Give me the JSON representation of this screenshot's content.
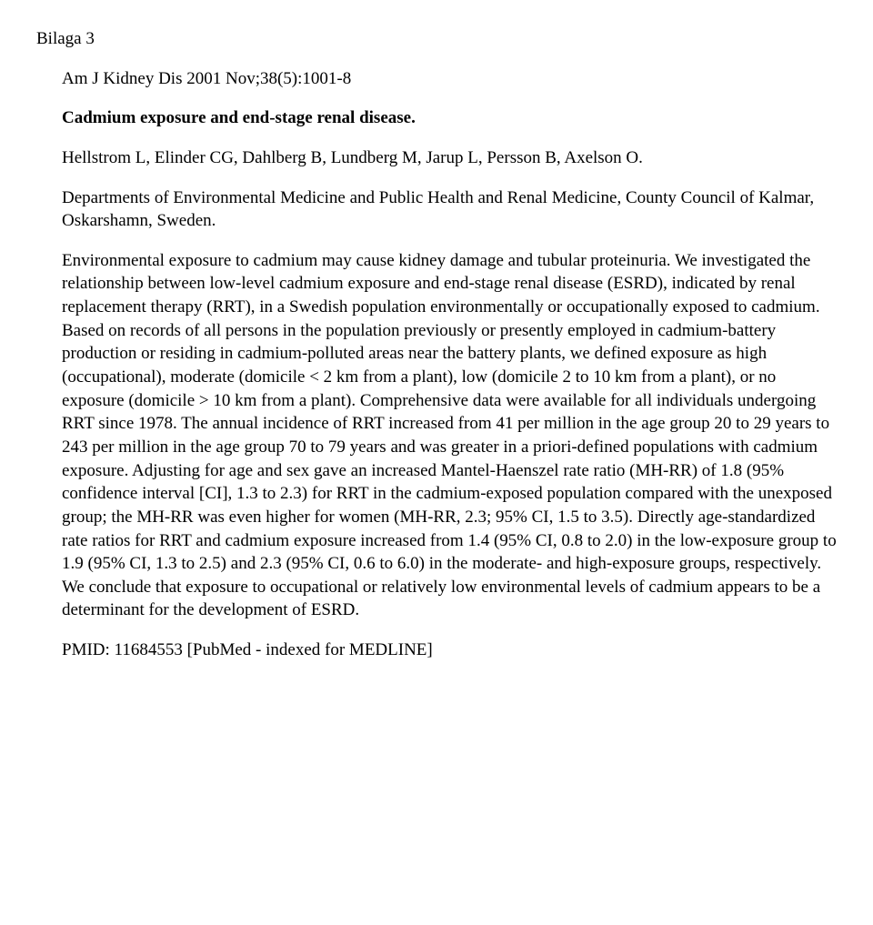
{
  "header_label": "Bilaga 3",
  "citation": "Am J Kidney Dis 2001 Nov;38(5):1001-8",
  "title": "Cadmium exposure and end-stage renal disease.",
  "authors": "Hellstrom L, Elinder CG, Dahlberg B, Lundberg M, Jarup L, Persson B, Axelson O.",
  "affiliation": "Departments of Environmental Medicine and Public Health and Renal Medicine, County Council of Kalmar, Oskarshamn, Sweden.",
  "abstract": "Environmental exposure to cadmium may cause kidney damage and tubular proteinuria. We investigated the relationship between low-level cadmium exposure and end-stage renal disease (ESRD), indicated by renal replacement therapy (RRT), in a Swedish population environmentally or occupationally exposed to cadmium. Based on records of all persons in the population previously or presently employed in cadmium-battery production or residing in cadmium-polluted areas near the battery plants, we defined exposure as high (occupational), moderate (domicile < 2 km from a plant), low (domicile 2 to 10 km from a plant), or no exposure (domicile > 10 km from a plant). Comprehensive data were available for all individuals undergoing RRT since 1978. The annual incidence of RRT increased from 41 per million in the age group 20 to 29 years to 243 per million in the age group 70 to 79 years and was greater in a priori-defined populations with cadmium exposure. Adjusting for age and sex gave an increased Mantel-Haenszel rate ratio (MH-RR) of 1.8 (95% confidence interval [CI], 1.3 to 2.3) for RRT in the cadmium-exposed population compared with the unexposed group; the MH-RR was even higher for women (MH-RR, 2.3; 95% CI, 1.5 to 3.5). Directly age-standardized rate ratios for RRT and cadmium exposure increased from 1.4 (95% CI, 0.8 to 2.0) in the low-exposure group to 1.9 (95% CI, 1.3 to 2.5) and 2.3 (95% CI, 0.6 to 6.0) in the moderate- and high-exposure groups, respectively. We conclude that exposure to occupational or relatively low environmental levels of cadmium appears to be a determinant for the development of ESRD.",
  "pmid": "PMID: 11684553 [PubMed - indexed for MEDLINE]"
}
